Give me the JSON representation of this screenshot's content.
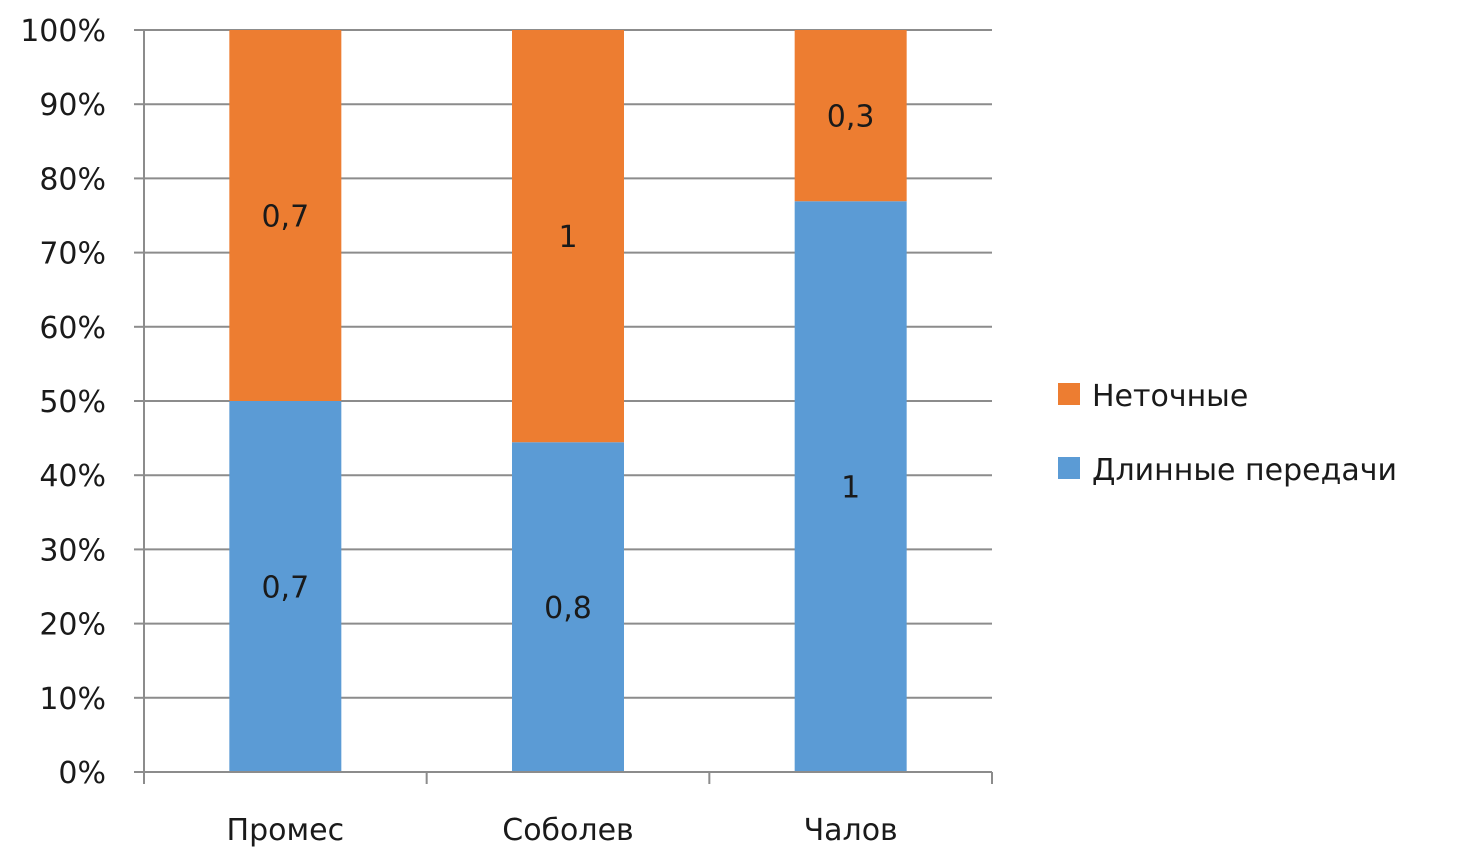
{
  "chart_data": {
    "type": "bar",
    "stacked": true,
    "percent_stacked": true,
    "categories": [
      "Промес",
      "Соболев",
      "Чалов"
    ],
    "series": [
      {
        "name": "Длинные передачи",
        "values": [
          0.7,
          0.8,
          1
        ],
        "labels": [
          "0,7",
          "0,8",
          "1"
        ],
        "color": "#5b9bd5"
      },
      {
        "name": "Неточные",
        "values": [
          0.7,
          1,
          0.3
        ],
        "labels": [
          "0,7",
          "1",
          "0,3"
        ],
        "color": "#ed7d31"
      }
    ],
    "y_ticks": [
      "0%",
      "10%",
      "20%",
      "30%",
      "40%",
      "50%",
      "60%",
      "70%",
      "80%",
      "90%",
      "100%"
    ],
    "ylim": [
      0,
      100
    ],
    "grid": true,
    "legend_position": "right",
    "legend_order": [
      "Неточные",
      "Длинные передачи"
    ],
    "title": "",
    "xlabel": "",
    "ylabel": ""
  }
}
